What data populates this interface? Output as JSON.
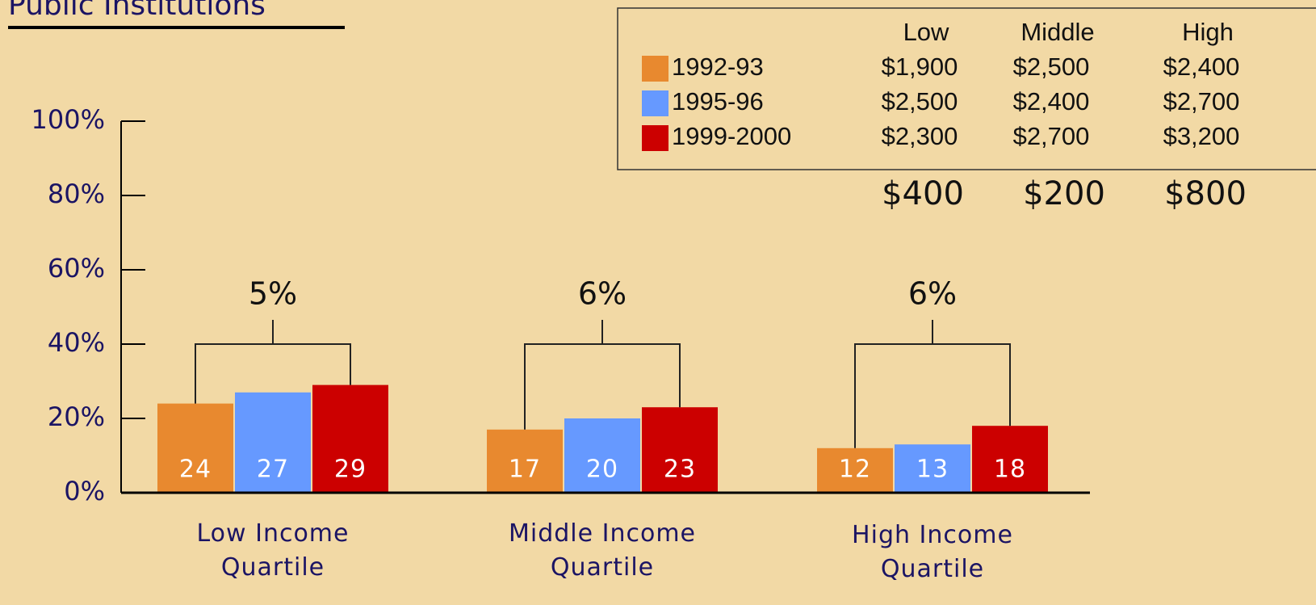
{
  "chart_data": {
    "type": "bar",
    "title": "Public Institutions",
    "categories": [
      "Low Income Quartile",
      "Middle Income Quartile",
      "High Income Quartile"
    ],
    "series": [
      {
        "name": "1992-93",
        "color": "#e8892f",
        "values": [
          24,
          17,
          12
        ]
      },
      {
        "name": "1995-96",
        "color": "#6699ff",
        "values": [
          27,
          20,
          13
        ]
      },
      {
        "name": "1999-2000",
        "color": "#cc0000",
        "values": [
          29,
          23,
          18
        ]
      }
    ],
    "ylim": [
      0,
      100
    ],
    "yticks": [
      {
        "value": 0,
        "label": "0%"
      },
      {
        "value": 20,
        "label": "20%"
      },
      {
        "value": 40,
        "label": "40%"
      },
      {
        "value": 60,
        "label": "60%"
      },
      {
        "value": 80,
        "label": "80%"
      },
      {
        "value": 100,
        "label": "100%"
      }
    ],
    "annotations": [
      "5%",
      "6%",
      "6%"
    ],
    "table": {
      "columns": [
        "Low",
        "Middle",
        "High"
      ],
      "rows": [
        [
          "$1,900",
          "$2,500",
          "$2,400"
        ],
        [
          "$2,500",
          "$2,400",
          "$2,700"
        ],
        [
          "$2,300",
          "$2,700",
          "$3,200"
        ]
      ],
      "differences": [
        "$400",
        "$200",
        "$800"
      ]
    }
  }
}
